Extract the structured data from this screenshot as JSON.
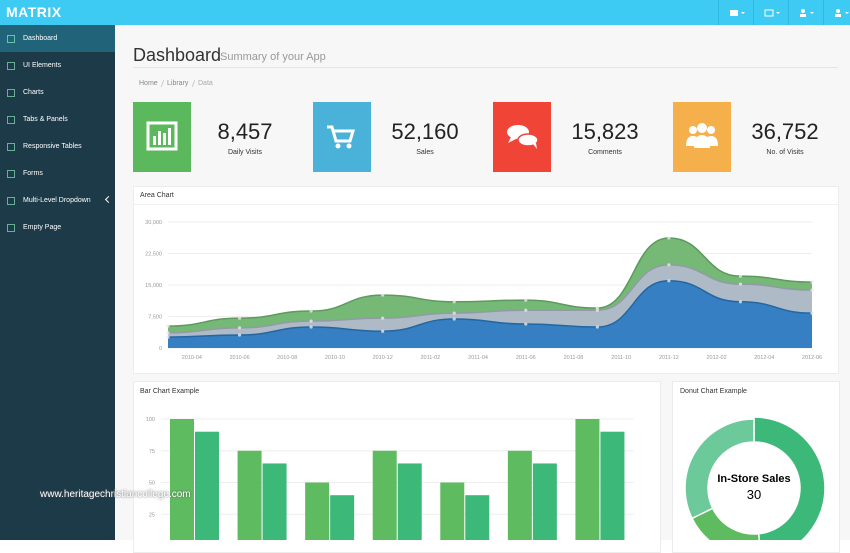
{
  "header": {
    "brand": "MATRIX"
  },
  "sidebar": {
    "items": [
      "Dashboard",
      "UI Elements",
      "Charts",
      "Tabs & Panels",
      "Responsive Tables",
      "Forms",
      "Multi-Level Dropdown",
      "Empty Page"
    ]
  },
  "page": {
    "title": "Dashboard",
    "subtitle": "Summary of your App",
    "breadcrumb": [
      "Home",
      "Library",
      "Data"
    ]
  },
  "stats": [
    {
      "value": "8,457",
      "label": "Daily Visits"
    },
    {
      "value": "52,160",
      "label": "Sales"
    },
    {
      "value": "15,823",
      "label": "Comments"
    },
    {
      "value": "36,752",
      "label": "No. of Visits"
    }
  ],
  "watermark": "www.heritagechristiancollege.com",
  "chart_data": [
    {
      "type": "area",
      "title": "Area Chart",
      "stacked": true,
      "grid": true,
      "x": [
        "2010-03",
        "2010-06",
        "2010-09",
        "2010-12",
        "2011-03",
        "2011-06",
        "2011-09",
        "2011-12",
        "2012-03",
        "2012-06"
      ],
      "xlim": [
        "2010-03",
        "2012-06"
      ],
      "xticks": [
        "2010-04",
        "2010-06",
        "2010-08",
        "2010-10",
        "2010-12",
        "2011-02",
        "2011-04",
        "2011-06",
        "2011-08",
        "2011-10",
        "2011-12",
        "2012-02",
        "2012-04",
        "2012-06"
      ],
      "ylim": [
        0,
        30000
      ],
      "yticks": [
        0,
        {
          "value": 7500,
          "label": "7,500"
        },
        {
          "value": 15000,
          "label": "15,000"
        },
        {
          "value": 22500,
          "label": "22,500"
        },
        {
          "value": 30000,
          "label": "30,000"
        }
      ],
      "series": [
        {
          "color": "#2a78bf",
          "values": [
            2600,
            3100,
            5000,
            4000,
            6900,
            5700,
            5000,
            16000,
            11000,
            8300
          ]
        },
        {
          "color": "#aab6c3",
          "values": [
            1000,
            1700,
            1400,
            3100,
            1400,
            3300,
            4000,
            3800,
            4200,
            5500
          ]
        },
        {
          "color": "#6fb46f",
          "values": [
            1600,
            2300,
            2400,
            5500,
            2700,
            2400,
            500,
            6400,
            1900,
            1900
          ]
        }
      ]
    },
    {
      "type": "bar",
      "title": "Bar Chart Example",
      "grid": true,
      "ylim": [
        0,
        100
      ],
      "yticks": [
        25,
        50,
        75,
        100
      ],
      "series": [
        {
          "color": "#5fbb5f",
          "values": [
            100,
            75,
            50,
            75,
            50,
            75,
            100
          ]
        },
        {
          "color": "#3cb878",
          "values": [
            90,
            65,
            40,
            65,
            40,
            65,
            90
          ]
        }
      ]
    },
    {
      "type": "donut",
      "title": "Donut Chart Example",
      "segments": [
        {
          "label": "In-Store Sales",
          "value": 30,
          "color": "#3cb878"
        },
        {
          "value": 12,
          "color": "#5fbb5f"
        },
        {
          "value": 20,
          "color": "#6cc99a"
        }
      ]
    }
  ]
}
